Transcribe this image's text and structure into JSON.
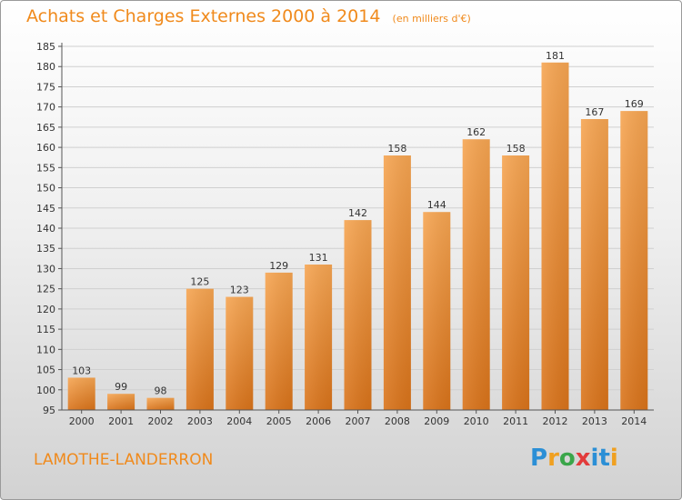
{
  "header": {
    "title": "Achats et Charges Externes 2000 à 2014",
    "unit": "(en milliers d'€)"
  },
  "footer": {
    "commune": "LAMOTHE-LANDERRON",
    "logo": "Proxiti"
  },
  "chart_data": {
    "type": "bar",
    "categories": [
      "2000",
      "2001",
      "2002",
      "2003",
      "2004",
      "2005",
      "2006",
      "2007",
      "2008",
      "2009",
      "2010",
      "2011",
      "2012",
      "2013",
      "2014"
    ],
    "values": [
      103,
      99,
      98,
      125,
      123,
      129,
      131,
      142,
      158,
      144,
      162,
      158,
      181,
      167,
      169
    ],
    "title": "Achats et Charges Externes 2000 à 2014",
    "subtitle": "(en milliers d'€)",
    "xlabel": "",
    "ylabel": "",
    "ylim": [
      95,
      185
    ],
    "yticks": [
      95,
      100,
      105,
      110,
      115,
      120,
      125,
      130,
      135,
      140,
      145,
      150,
      155,
      160,
      165,
      170,
      175,
      180,
      185
    ],
    "grid": true,
    "data_labels": true,
    "colors": {
      "bar_light": "#f6a552",
      "bar_dark": "#d9731a",
      "title": "#f08a1c",
      "grid": "#cfcfcf"
    }
  }
}
